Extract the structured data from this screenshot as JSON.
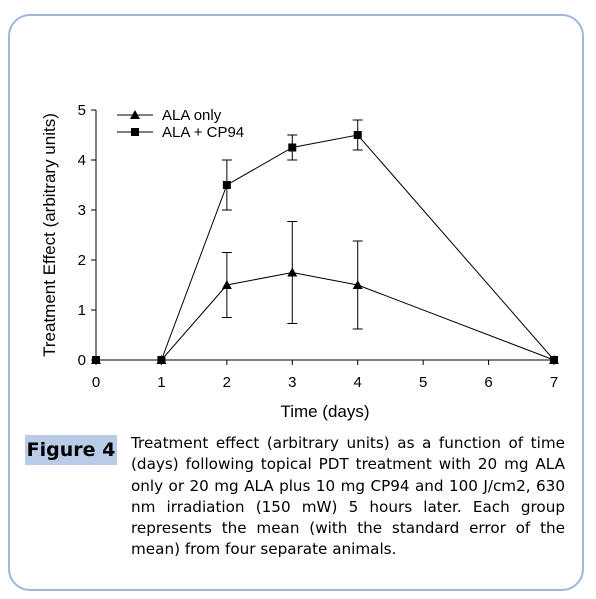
{
  "figure": {
    "label": "Figure 4",
    "caption": "Treatment effect (arbitrary units) as a function of time (days) following topical PDT treatment with 20 mg ALA only or 20 mg ALA plus 10 mg CP94 and 100 J/cm2, 630 nm irradiation (150 mW) 5 hours later.  Each group represents the mean (with the standard error of the mean) from four separate animals."
  },
  "chart_data": {
    "type": "line",
    "xlabel": "Time (days)",
    "ylabel": "Treatment Effect (arbitrary units)",
    "xlim": [
      0,
      7
    ],
    "ylim": [
      0,
      5
    ],
    "xticks": [
      0,
      1,
      2,
      3,
      4,
      5,
      6,
      7
    ],
    "yticks": [
      0,
      1,
      2,
      3,
      4,
      5
    ],
    "grid": false,
    "legend_position": "top-left",
    "series": [
      {
        "name": "ALA only",
        "marker": "triangle",
        "x": [
          0,
          1,
          2,
          3,
          4,
          7
        ],
        "y": [
          0,
          0,
          1.5,
          1.75,
          1.5,
          0
        ],
        "err_low": [
          0,
          0,
          0.65,
          1.02,
          0.88,
          0
        ],
        "err_high": [
          0,
          0,
          0.65,
          1.02,
          0.88,
          0
        ]
      },
      {
        "name": "ALA + CP94",
        "marker": "square",
        "x": [
          0,
          1,
          2,
          3,
          4,
          7
        ],
        "y": [
          0,
          0,
          3.5,
          4.25,
          4.5,
          0
        ],
        "err_low": [
          0,
          0,
          0.5,
          0.25,
          0.3,
          0
        ],
        "err_high": [
          0,
          0,
          0.5,
          0.25,
          0.3,
          0
        ]
      }
    ]
  }
}
